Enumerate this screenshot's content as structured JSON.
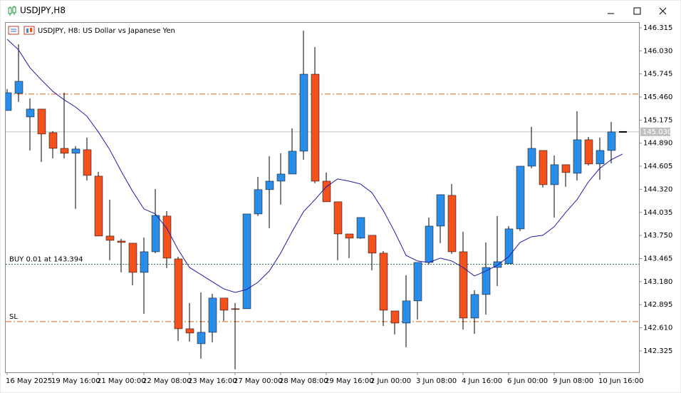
{
  "window": {
    "title": "USDJPY,H8"
  },
  "chart_data": {
    "type": "candlestick",
    "title": "USDJPY, H8:  US Dollar vs Japanese Yen",
    "categories": [
      "16 May 2025",
      null,
      null,
      null,
      "19 May 16:00",
      null,
      null,
      null,
      "21 May 00:00",
      null,
      null,
      null,
      "22 May 08:00",
      null,
      null,
      null,
      "23 May 16:00",
      null,
      null,
      null,
      "27 May 00:00",
      null,
      null,
      null,
      "28 May 08:00",
      null,
      null,
      null,
      "29 May 16:00",
      null,
      null,
      null,
      "2 Jun 00:00",
      null,
      null,
      null,
      "3 Jun 08:00",
      null,
      null,
      null,
      "4 Jun 16:00",
      null,
      null,
      null,
      "6 Jun 00:00",
      null,
      null,
      null,
      "9 Jun 08:00",
      null,
      null,
      null,
      "10 Jun 16:00",
      null,
      null
    ],
    "open": [
      145.293,
      145.505,
      145.214,
      145.311,
      145.02,
      144.826,
      144.765,
      144.809,
      144.483,
      143.743,
      143.681,
      143.655,
      143.294,
      143.549,
      143.99,
      143.461,
      142.598,
      142.413,
      142.554,
      142.977,
      142.845,
      142.845,
      144.016,
      144.316,
      144.421,
      144.509,
      144.791,
      145.742,
      144.421,
      144.166,
      143.769,
      143.717,
      143.752,
      143.532,
      142.818,
      142.668,
      142.942,
      143.417,
      143.866,
      144.245,
      143.549,
      142.73,
      143.021,
      143.355,
      143.4,
      143.831,
      144.606,
      144.8,
      144.377,
      144.624,
      144.518,
      144.932,
      144.633,
      144.8,
      145.029
    ],
    "high": [
      145.558,
      146.112,
      145.443,
      145.311,
      145.038,
      145.513,
      144.853,
      144.959,
      144.536,
      144.192,
      143.708,
      143.655,
      143.725,
      144.324,
      144.051,
      143.488,
      142.915,
      143.047,
      143.03,
      142.977,
      142.915,
      144.016,
      144.474,
      144.73,
      144.765,
      145.073,
      146.28,
      146.077,
      144.527,
      144.166,
      143.769,
      143.972,
      143.752,
      143.558,
      142.818,
      143.259,
      143.417,
      143.972,
      144.254,
      144.386,
      143.796,
      143.074,
      143.664,
      143.99,
      143.866,
      144.606,
      145.091,
      144.8,
      144.738,
      144.624,
      145.284,
      144.967,
      144.959,
      145.152,
      145.029
    ],
    "low": [
      145.293,
      145.399,
      144.8,
      144.659,
      144.703,
      144.703,
      144.078,
      144.43,
      143.743,
      143.444,
      143.294,
      143.135,
      142.783,
      143.532,
      143.347,
      142.448,
      142.439,
      142.228,
      142.431,
      142.695,
      142.096,
      142.845,
      143.99,
      143.84,
      144.131,
      144.509,
      144.686,
      144.395,
      144.166,
      143.444,
      143.47,
      143.708,
      143.32,
      142.633,
      142.528,
      142.369,
      142.712,
      143.391,
      143.655,
      143.523,
      142.589,
      142.536,
      142.774,
      143.126,
      143.4,
      143.805,
      144.58,
      144.342,
      143.972,
      144.351,
      144.43,
      144.615,
      144.439,
      144.641,
      145.029
    ],
    "close": [
      145.513,
      145.654,
      145.311,
      145.003,
      144.826,
      144.765,
      144.818,
      144.492,
      143.743,
      143.69,
      143.664,
      143.294,
      143.549,
      143.998,
      143.47,
      142.598,
      142.545,
      142.554,
      142.977,
      142.827,
      142.836,
      144.016,
      144.316,
      144.421,
      144.509,
      144.791,
      145.742,
      144.421,
      144.166,
      143.769,
      143.717,
      143.972,
      143.532,
      142.827,
      142.668,
      142.942,
      143.417,
      143.866,
      144.254,
      143.549,
      142.73,
      143.021,
      143.355,
      143.426,
      143.831,
      144.606,
      144.826,
      144.377,
      144.624,
      144.527,
      144.932,
      144.633,
      144.8,
      145.029,
      145.029
    ],
    "up_color": "#2a8ee8",
    "down_color": "#f4511e",
    "wick_color": "#000000",
    "ma": {
      "color": "#1c1ca8",
      "values": [
        146.174,
        146.042,
        145.822,
        145.672,
        145.531,
        145.425,
        145.337,
        145.223,
        145.029,
        144.809,
        144.545,
        144.298,
        144.078,
        144.016,
        143.84,
        143.576,
        143.355,
        143.267,
        143.179,
        143.091,
        143.047,
        143.082,
        143.171,
        143.311,
        143.532,
        143.796,
        144.043,
        144.192,
        144.351,
        144.448,
        144.421,
        144.386,
        144.28,
        144.06,
        143.796,
        143.505,
        143.435,
        143.417,
        143.47,
        143.435,
        143.355,
        143.25,
        143.311,
        143.382,
        143.488,
        143.664,
        143.734,
        143.752,
        143.858,
        144.034,
        144.192,
        144.412,
        144.58,
        144.686,
        144.756
      ]
    },
    "hlines": [
      {
        "value": 145.496,
        "color": "#d9622b",
        "style": "dashdot"
      },
      {
        "value": 143.394,
        "label": "BUY 0.01 at 143.394",
        "color": "#2e7d4f",
        "style": "dotted"
      },
      {
        "value": 142.686,
        "label": "SL",
        "color": "#d9622b",
        "style": "dashdot"
      }
    ],
    "last_price": {
      "value": 145.03,
      "label": "145.030",
      "color": "#c0c0c0"
    },
    "ylim": [
      142.06,
      146.385
    ],
    "yticks": [
      146.315,
      {
        "value": 146.03,
        "label": "146.030"
      },
      145.745,
      {
        "value": 145.46,
        "label": "145.460"
      },
      145.175,
      {
        "value": 144.89,
        "label": "144.890"
      },
      144.605,
      {
        "value": 144.32,
        "label": "144.320"
      },
      144.035,
      {
        "value": 143.75,
        "label": "143.750"
      },
      143.465,
      {
        "value": 143.18,
        "label": "143.180"
      },
      142.895,
      {
        "value": 142.61,
        "label": "142.610"
      },
      142.325
    ],
    "grid": false
  }
}
